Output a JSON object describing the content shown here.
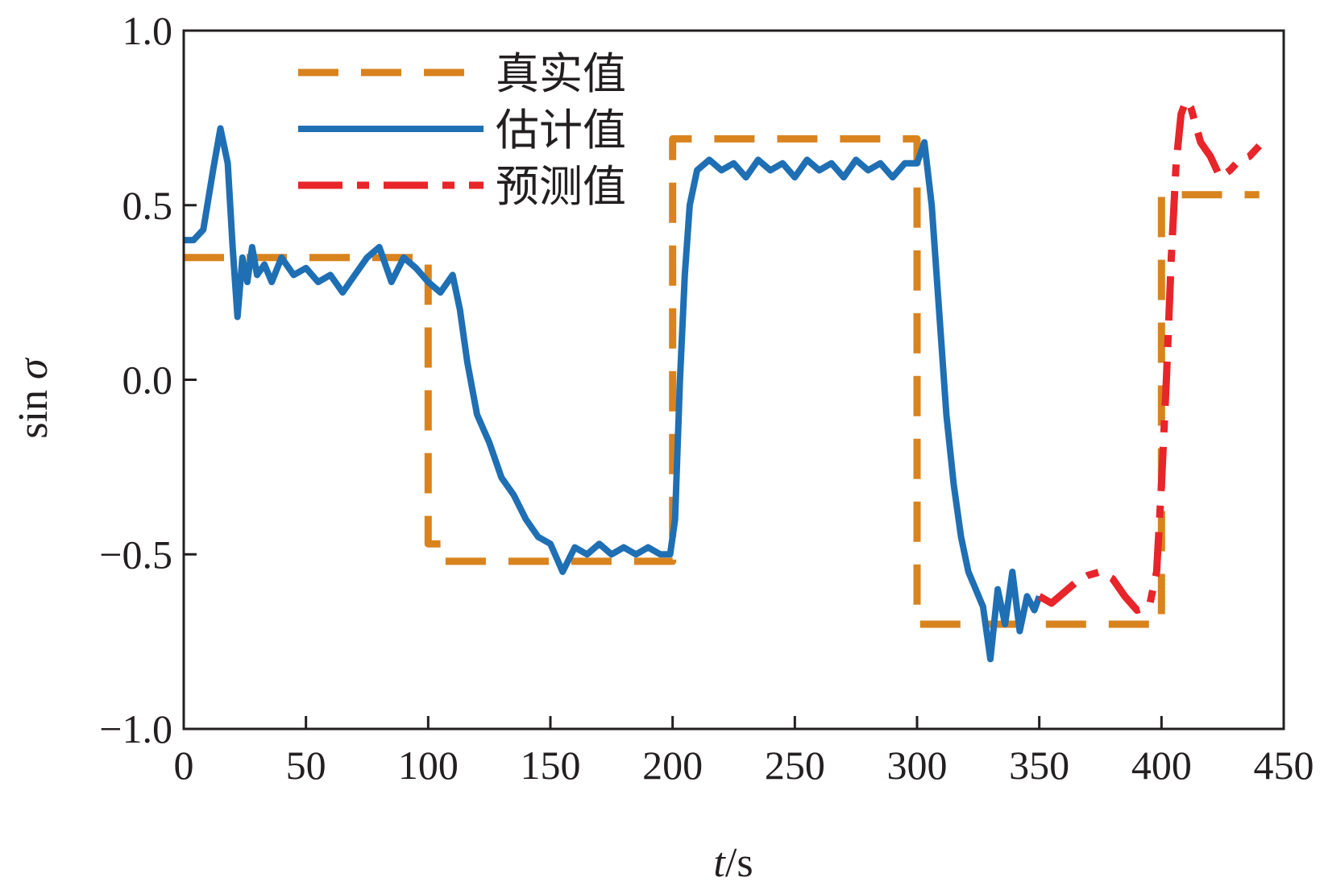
{
  "chart_data": {
    "type": "line",
    "xlabel_italic": "t",
    "xlabel_unit": "/s",
    "ylabel_prefix": "sin ",
    "ylabel_symbol": "σ",
    "xlim": [
      0,
      450
    ],
    "ylim": [
      -1.0,
      1.0
    ],
    "x_ticks": [
      0,
      50,
      100,
      150,
      200,
      250,
      300,
      350,
      400,
      450
    ],
    "x_tick_labels": [
      "0",
      "50",
      "100",
      "150",
      "200",
      "250",
      "300",
      "350",
      "400",
      "450"
    ],
    "y_ticks": [
      -1.0,
      -0.5,
      0.0,
      0.5,
      1.0
    ],
    "y_tick_labels": [
      "−1.0",
      "−0.5",
      "0.0",
      "0.5",
      "1.0"
    ],
    "grid": false,
    "legend_position": "top-left",
    "series": [
      {
        "name": "真实值",
        "style": "dashed",
        "color": "#d9831e",
        "x": [
          0,
          100,
          100,
          107,
          107,
          200,
          200,
          300,
          300,
          312,
          312,
          400,
          400,
          440
        ],
        "y": [
          0.35,
          0.35,
          -0.47,
          -0.47,
          -0.52,
          -0.52,
          0.69,
          0.69,
          -0.7,
          -0.7,
          -0.7,
          -0.7,
          0.53,
          0.53
        ]
      },
      {
        "name": "估计值",
        "style": "solid",
        "color": "#1f6fb4",
        "x": [
          0,
          4,
          8,
          12,
          15,
          18,
          20,
          22,
          24,
          26,
          28,
          30,
          33,
          36,
          40,
          45,
          50,
          55,
          60,
          65,
          70,
          75,
          80,
          85,
          90,
          95,
          100,
          105,
          110,
          113,
          116,
          120,
          125,
          130,
          135,
          140,
          145,
          150,
          155,
          160,
          165,
          170,
          175,
          180,
          185,
          190,
          195,
          199,
          201,
          203,
          205,
          207,
          210,
          215,
          220,
          225,
          230,
          235,
          240,
          245,
          250,
          255,
          260,
          265,
          270,
          275,
          280,
          285,
          290,
          295,
          300,
          303,
          306,
          309,
          312,
          315,
          318,
          321,
          324,
          327,
          330,
          333,
          336,
          339,
          342,
          345,
          348,
          350
        ],
        "y": [
          0.4,
          0.4,
          0.43,
          0.6,
          0.72,
          0.62,
          0.38,
          0.18,
          0.35,
          0.28,
          0.38,
          0.3,
          0.33,
          0.28,
          0.35,
          0.3,
          0.32,
          0.28,
          0.3,
          0.25,
          0.3,
          0.35,
          0.38,
          0.28,
          0.35,
          0.32,
          0.28,
          0.25,
          0.3,
          0.2,
          0.05,
          -0.1,
          -0.18,
          -0.28,
          -0.33,
          -0.4,
          -0.45,
          -0.47,
          -0.55,
          -0.48,
          -0.5,
          -0.47,
          -0.5,
          -0.48,
          -0.5,
          -0.48,
          -0.5,
          -0.5,
          -0.4,
          0.0,
          0.3,
          0.5,
          0.6,
          0.63,
          0.6,
          0.62,
          0.58,
          0.63,
          0.6,
          0.62,
          0.58,
          0.63,
          0.6,
          0.62,
          0.58,
          0.63,
          0.6,
          0.62,
          0.58,
          0.62,
          0.62,
          0.68,
          0.5,
          0.2,
          -0.1,
          -0.3,
          -0.45,
          -0.55,
          -0.6,
          -0.65,
          -0.8,
          -0.6,
          -0.7,
          -0.55,
          -0.72,
          -0.62,
          -0.66,
          -0.62
        ]
      },
      {
        "name": "预测值",
        "style": "dashdot",
        "color": "#e8252a",
        "x": [
          350,
          355,
          360,
          365,
          370,
          375,
          380,
          385,
          390,
          395,
          398,
          400,
          402,
          404,
          406,
          408,
          410,
          412,
          414,
          416,
          418,
          420,
          424,
          428,
          432,
          436,
          440
        ],
        "y": [
          -0.62,
          -0.64,
          -0.61,
          -0.58,
          -0.56,
          -0.55,
          -0.57,
          -0.62,
          -0.66,
          -0.65,
          -0.55,
          -0.3,
          0.0,
          0.35,
          0.62,
          0.76,
          0.8,
          0.78,
          0.73,
          0.68,
          0.66,
          0.64,
          0.58,
          0.6,
          0.63,
          0.64,
          0.67
        ]
      }
    ]
  }
}
